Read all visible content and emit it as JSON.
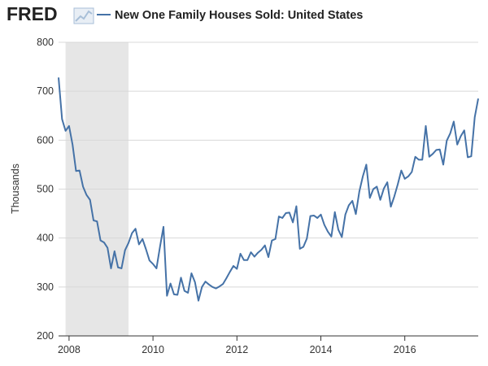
{
  "header": {
    "brand": "FRED",
    "brand_icon": "line-chart-icon",
    "title": "New One Family Houses Sold: United States"
  },
  "colors": {
    "series": "#4572a7",
    "recession": "#e6e6e6",
    "grid": "#d8d8d8",
    "axis": "#333333",
    "brand_icon": "#a8bfd8"
  },
  "chart_data": {
    "type": "line",
    "title": "New One Family Houses Sold: United States",
    "xlabel": "",
    "ylabel": "Thousands",
    "ylim": [
      200,
      800
    ],
    "y_ticks": [
      "200",
      "300",
      "400",
      "500",
      "600",
      "700",
      "800"
    ],
    "x_ticks": [
      "2008",
      "2010",
      "2012",
      "2014",
      "2016"
    ],
    "grid": "horizontal",
    "legend": "top-left",
    "recession": {
      "start": "2007-12",
      "end": "2009-06"
    },
    "series": [
      {
        "name": "New One Family Houses Sold: United States",
        "x": [
          "2007-10",
          "2007-11",
          "2007-12",
          "2008-01",
          "2008-02",
          "2008-03",
          "2008-04",
          "2008-05",
          "2008-06",
          "2008-07",
          "2008-08",
          "2008-09",
          "2008-10",
          "2008-11",
          "2008-12",
          "2009-01",
          "2009-02",
          "2009-03",
          "2009-04",
          "2009-05",
          "2009-06",
          "2009-07",
          "2009-08",
          "2009-09",
          "2009-10",
          "2009-11",
          "2009-12",
          "2010-01",
          "2010-02",
          "2010-03",
          "2010-04",
          "2010-05",
          "2010-06",
          "2010-07",
          "2010-08",
          "2010-09",
          "2010-10",
          "2010-11",
          "2010-12",
          "2011-01",
          "2011-02",
          "2011-03",
          "2011-04",
          "2011-05",
          "2011-06",
          "2011-07",
          "2011-08",
          "2011-09",
          "2011-10",
          "2011-11",
          "2011-12",
          "2012-01",
          "2012-02",
          "2012-03",
          "2012-04",
          "2012-05",
          "2012-06",
          "2012-07",
          "2012-08",
          "2012-09",
          "2012-10",
          "2012-11",
          "2012-12",
          "2013-01",
          "2013-02",
          "2013-03",
          "2013-04",
          "2013-05",
          "2013-06",
          "2013-07",
          "2013-08",
          "2013-09",
          "2013-10",
          "2013-11",
          "2013-12",
          "2014-01",
          "2014-02",
          "2014-03",
          "2014-04",
          "2014-05",
          "2014-06",
          "2014-07",
          "2014-08",
          "2014-09",
          "2014-10",
          "2014-11",
          "2014-12",
          "2015-01",
          "2015-02",
          "2015-03",
          "2015-04",
          "2015-05",
          "2015-06",
          "2015-07",
          "2015-08",
          "2015-09",
          "2015-10",
          "2015-11",
          "2015-12",
          "2016-01",
          "2016-02",
          "2016-03",
          "2016-04",
          "2016-05",
          "2016-06",
          "2016-07",
          "2016-08",
          "2016-09",
          "2016-10",
          "2016-11",
          "2016-12",
          "2017-01",
          "2017-02",
          "2017-03",
          "2017-04",
          "2017-05",
          "2017-06",
          "2017-07",
          "2017-08",
          "2017-09",
          "2017-10"
        ],
        "values": [
          728,
          643,
          619,
          629,
          591,
          537,
          538,
          505,
          488,
          478,
          436,
          434,
          395,
          391,
          380,
          338,
          373,
          340,
          338,
          375,
          390,
          410,
          419,
          387,
          398,
          377,
          354,
          347,
          338,
          382,
          423,
          282,
          307,
          285,
          284,
          319,
          292,
          288,
          328,
          310,
          272,
          300,
          311,
          305,
          300,
          297,
          301,
          306,
          318,
          331,
          343,
          337,
          368,
          355,
          355,
          371,
          362,
          370,
          376,
          385,
          361,
          395,
          398,
          444,
          441,
          451,
          452,
          432,
          465,
          378,
          382,
          399,
          445,
          446,
          441,
          448,
          427,
          413,
          403,
          453,
          417,
          402,
          448,
          467,
          476,
          449,
          495,
          526,
          550,
          482,
          500,
          505,
          478,
          501,
          514,
          464,
          485,
          510,
          538,
          521,
          526,
          535,
          566,
          560,
          560,
          629,
          566,
          572,
          580,
          581,
          550,
          599,
          614,
          638,
          591,
          608,
          620,
          565,
          567,
          647,
          685
        ]
      }
    ]
  }
}
